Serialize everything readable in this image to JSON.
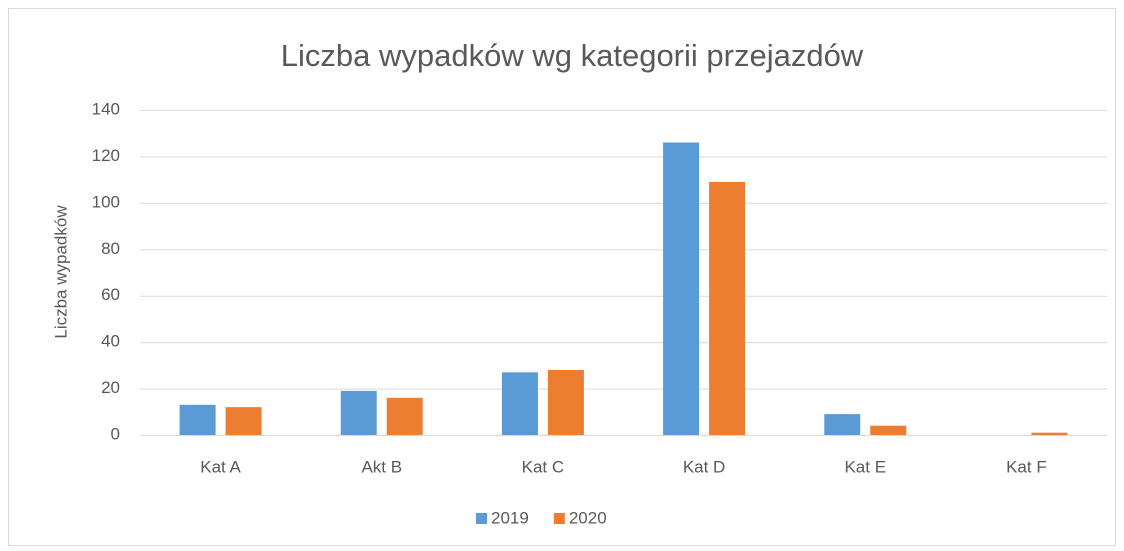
{
  "chart_data": {
    "type": "bar",
    "title": "Liczba wypadków wg kategorii przejazdów",
    "y_label": "Liczba wypadków",
    "categories": [
      "Kat A",
      "Akt B",
      "Kat C",
      "Kat D",
      "Kat E",
      "Kat F"
    ],
    "series": [
      {
        "name": "2019",
        "color": "#5b9bd5",
        "values": [
          13,
          19,
          27,
          126,
          9,
          0
        ]
      },
      {
        "name": "2020",
        "color": "#ed7d31",
        "values": [
          12,
          16,
          28,
          109,
          4,
          1
        ]
      }
    ],
    "ylim": [
      0,
      140
    ],
    "yticks": [
      0,
      20,
      40,
      60,
      80,
      100,
      120,
      140
    ],
    "grid": true,
    "legend": "bottom"
  }
}
